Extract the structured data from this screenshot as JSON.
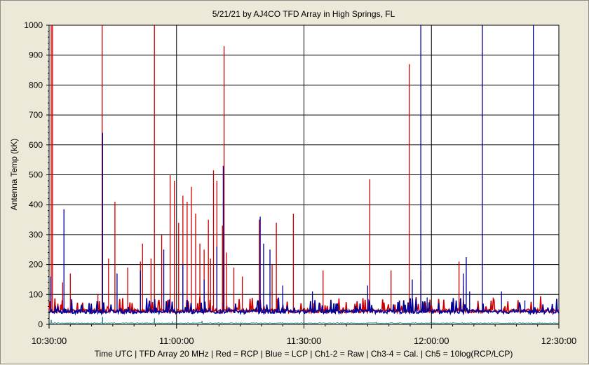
{
  "chart_data": {
    "type": "line",
    "title": "5/21/21  by  AJ4CO TFD Array  in  High Springs, FL",
    "ylabel": "Antenna Temp (kK)",
    "footer": "Time UTC | TFD Array 20 MHz | Red = RCP | Blue = LCP | Ch1-2 = Raw | Ch3-4 = Cal. | Ch5 = 10log(RCP/LCP)",
    "x_ticks": [
      "10:30:00",
      "11:00:00",
      "11:30:00",
      "12:00:00",
      "12:30:00"
    ],
    "xlim_minutes": [
      0,
      120
    ],
    "ylim": [
      0,
      1000
    ],
    "y_ticks": [
      0,
      100,
      200,
      300,
      400,
      500,
      600,
      700,
      800,
      900,
      1000
    ],
    "grid": true,
    "series": [
      {
        "name": "RCP",
        "color": "#cc0000",
        "baseline": 45,
        "spikes": [
          {
            "t": 0.5,
            "v": 1000
          },
          {
            "t": 0.8,
            "v": 1000
          },
          {
            "t": 3.2,
            "v": 140
          },
          {
            "t": 5,
            "v": 170
          },
          {
            "t": 11.5,
            "v": 100
          },
          {
            "t": 12.5,
            "v": 1000
          },
          {
            "t": 14,
            "v": 220
          },
          {
            "t": 15.5,
            "v": 410
          },
          {
            "t": 18.5,
            "v": 190
          },
          {
            "t": 21.5,
            "v": 210
          },
          {
            "t": 22,
            "v": 270
          },
          {
            "t": 24,
            "v": 220
          },
          {
            "t": 24.8,
            "v": 1000
          },
          {
            "t": 26.5,
            "v": 300
          },
          {
            "t": 28.5,
            "v": 500
          },
          {
            "t": 29.5,
            "v": 480
          },
          {
            "t": 30.5,
            "v": 340
          },
          {
            "t": 31.5,
            "v": 430
          },
          {
            "t": 32.5,
            "v": 410
          },
          {
            "t": 33.5,
            "v": 460
          },
          {
            "t": 34.5,
            "v": 370
          },
          {
            "t": 35.5,
            "v": 270
          },
          {
            "t": 36.5,
            "v": 250
          },
          {
            "t": 37.5,
            "v": 350
          },
          {
            "t": 38,
            "v": 220
          },
          {
            "t": 38.7,
            "v": 515
          },
          {
            "t": 39.5,
            "v": 480
          },
          {
            "t": 40.8,
            "v": 330
          },
          {
            "t": 41.2,
            "v": 930
          },
          {
            "t": 41.8,
            "v": 240
          },
          {
            "t": 43.5,
            "v": 190
          },
          {
            "t": 45.5,
            "v": 160
          },
          {
            "t": 49.5,
            "v": 350
          },
          {
            "t": 52.5,
            "v": 200
          },
          {
            "t": 53.5,
            "v": 340
          },
          {
            "t": 57.5,
            "v": 370
          },
          {
            "t": 64.5,
            "v": 180
          },
          {
            "t": 75.5,
            "v": 485
          },
          {
            "t": 80.5,
            "v": 180
          },
          {
            "t": 84.8,
            "v": 870
          },
          {
            "t": 87.5,
            "v": 180
          },
          {
            "t": 96.5,
            "v": 210
          },
          {
            "t": 97.5,
            "v": 130
          }
        ]
      },
      {
        "name": "LCP",
        "color": "#00009a",
        "baseline": 42,
        "spikes": [
          {
            "t": 0.4,
            "v": 160
          },
          {
            "t": 3.5,
            "v": 385
          },
          {
            "t": 12.6,
            "v": 640
          },
          {
            "t": 16,
            "v": 170
          },
          {
            "t": 21.5,
            "v": 180
          },
          {
            "t": 27,
            "v": 250
          },
          {
            "t": 31.5,
            "v": 200
          },
          {
            "t": 36.5,
            "v": 150
          },
          {
            "t": 39.5,
            "v": 260
          },
          {
            "t": 41,
            "v": 530
          },
          {
            "t": 49.7,
            "v": 360
          },
          {
            "t": 50.5,
            "v": 270
          },
          {
            "t": 52,
            "v": 250
          },
          {
            "t": 55,
            "v": 130
          },
          {
            "t": 62,
            "v": 110
          },
          {
            "t": 75,
            "v": 130
          },
          {
            "t": 85.5,
            "v": 150
          },
          {
            "t": 87.5,
            "v": 1000
          },
          {
            "t": 89,
            "v": 90
          },
          {
            "t": 97.5,
            "v": 170
          },
          {
            "t": 98.2,
            "v": 225
          },
          {
            "t": 99,
            "v": 110
          },
          {
            "t": 102,
            "v": 1000
          },
          {
            "t": 106.5,
            "v": 110
          },
          {
            "t": 112,
            "v": 80
          },
          {
            "t": 114,
            "v": 1000
          }
        ]
      },
      {
        "name": "Ch5",
        "color": "#008080",
        "baseline": 4,
        "spikes": [
          {
            "t": 0.5,
            "v": 15
          },
          {
            "t": 12.6,
            "v": 25
          },
          {
            "t": 24.8,
            "v": 20
          },
          {
            "t": 29,
            "v": 10
          },
          {
            "t": 36,
            "v": 12
          },
          {
            "t": 77,
            "v": 8
          }
        ]
      }
    ]
  }
}
